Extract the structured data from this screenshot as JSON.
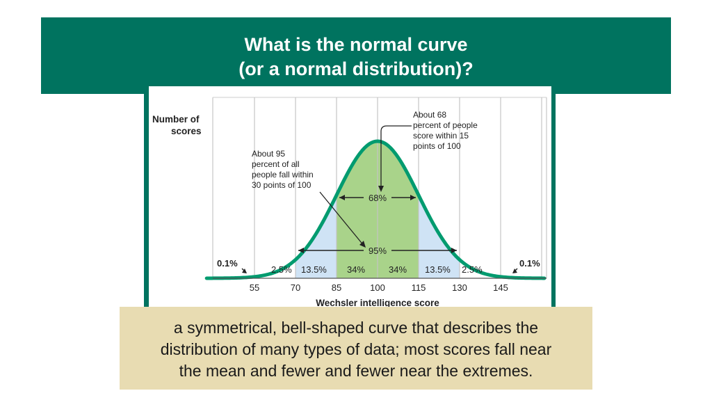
{
  "title": {
    "line1": "What is the normal curve",
    "line2": "(or a normal distribution)?"
  },
  "caption": {
    "line1": "a symmetrical, bell-shaped curve that describes the",
    "line2": "distribution of many types of data; most scores fall near",
    "line3": "the mean and fewer and fewer near the extremes."
  },
  "colors": {
    "header_bg": "#00735f",
    "curve": "#009b6f",
    "inner_band": "#a9d38a",
    "outer_band": "#cfe3f5",
    "caption_bg": "#e8dcb2"
  },
  "chart_data": {
    "type": "area",
    "distribution": "normal",
    "mean": 100,
    "sd": 15,
    "xlim": [
      40,
      160
    ],
    "xlabel": "Wechsler intelligence score",
    "ylabel": "Number of scores",
    "x_ticks": [
      55,
      70,
      85,
      100,
      115,
      130,
      145
    ],
    "regions": [
      {
        "from": 40,
        "to": 55,
        "label": "0.1%"
      },
      {
        "from": 55,
        "to": 70,
        "label": "2.5%"
      },
      {
        "from": 70,
        "to": 85,
        "label": "13.5%"
      },
      {
        "from": 85,
        "to": 100,
        "label": "34%"
      },
      {
        "from": 100,
        "to": 115,
        "label": "34%"
      },
      {
        "from": 115,
        "to": 130,
        "label": "13.5%"
      },
      {
        "from": 130,
        "to": 145,
        "label": "2.5%"
      },
      {
        "from": 145,
        "to": 160,
        "label": "0.1%"
      }
    ],
    "spans": [
      {
        "from": 85,
        "to": 115,
        "label": "68%"
      },
      {
        "from": 70,
        "to": 130,
        "label": "95%"
      }
    ],
    "annotations": {
      "left": [
        "About 95",
        "percent of all",
        "people fall within",
        "30 points of 100"
      ],
      "right": [
        "About 68",
        "percent of people",
        "score within 15",
        "points of 100"
      ]
    },
    "grid": true
  }
}
